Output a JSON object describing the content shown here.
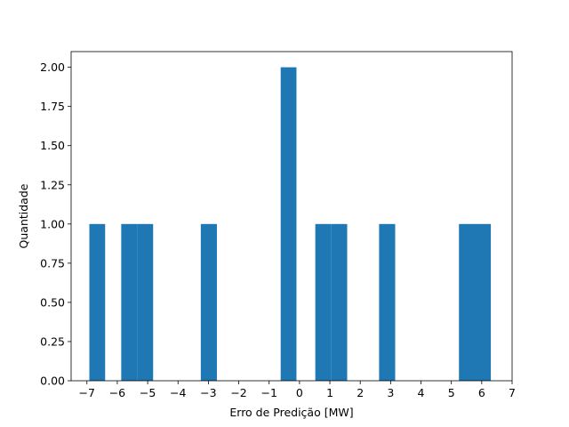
{
  "chart_data": {
    "type": "bar",
    "subtype": "histogram",
    "title": "",
    "xlabel": "Erro de Predição [MW]",
    "ylabel": "Quantidade",
    "xlim": [
      -7.52,
      7.0
    ],
    "ylim": [
      0,
      2.1
    ],
    "xticks": [
      -7,
      -6,
      -5,
      -4,
      -3,
      -2,
      -1,
      0,
      1,
      2,
      3,
      4,
      5,
      6,
      7
    ],
    "xtick_labels": [
      "−7",
      "−6",
      "−5",
      "−4",
      "−3",
      "−2",
      "−1",
      "0",
      "1",
      "2",
      "3",
      "4",
      "5",
      "6",
      "7"
    ],
    "yticks": [
      0,
      0.25,
      0.5,
      0.75,
      1.0,
      1.25,
      1.5,
      1.75,
      2.0
    ],
    "ytick_labels": [
      "0.00",
      "0.25",
      "0.50",
      "0.75",
      "1.00",
      "1.25",
      "1.50",
      "1.75",
      "2.00"
    ],
    "grid": false,
    "legend": "none",
    "bar_color": "#1f77b4",
    "bins": [
      {
        "x0": -6.92,
        "x1": -6.4,
        "count": 1
      },
      {
        "x0": -5.87,
        "x1": -5.35,
        "count": 1
      },
      {
        "x0": -5.35,
        "x1": -4.82,
        "count": 1
      },
      {
        "x0": -3.25,
        "x1": -2.72,
        "count": 1
      },
      {
        "x0": -0.62,
        "x1": -0.1,
        "count": 2
      },
      {
        "x0": 0.52,
        "x1": 1.05,
        "count": 1
      },
      {
        "x0": 1.05,
        "x1": 1.57,
        "count": 1
      },
      {
        "x0": 2.62,
        "x1": 3.15,
        "count": 1
      },
      {
        "x0": 5.25,
        "x1": 5.77,
        "count": 1
      },
      {
        "x0": 5.77,
        "x1": 6.3,
        "count": 1
      }
    ]
  }
}
